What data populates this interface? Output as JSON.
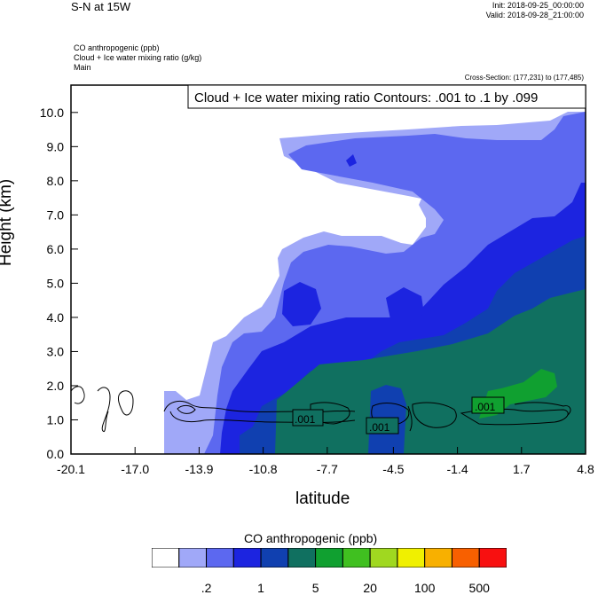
{
  "header": {
    "title": "S-N at 15W",
    "init": "Init: 2018-09-25_00:00:00",
    "valid": "Valid: 2018-09-28_21:00:00",
    "field1": "CO anthropogenic   (ppb)",
    "field2": "Cloud + Ice water mixing ratio   (g/kg)",
    "field3": "Main",
    "cross_section": "Cross-Section: (177,231) to (177,485)"
  },
  "chart_data": {
    "type": "contour",
    "title": "S-N at 15W",
    "contour_caption": "Cloud + Ice water mixing ratio Contours: .001 to .1 by .099",
    "xlabel": "latitude",
    "ylabel": "Height (km)",
    "xlim": [
      -20.1,
      4.8
    ],
    "ylim": [
      0.0,
      10.8
    ],
    "x_ticks": [
      "-20.1",
      "-17.0",
      "-13.9",
      "-10.8",
      "-7.7",
      "-4.5",
      "-1.4",
      "1.7",
      "4.8"
    ],
    "y_ticks": [
      "0.0",
      "1.0",
      "2.0",
      "3.0",
      "4.0",
      "5.0",
      "6.0",
      "7.0",
      "8.0",
      "9.0",
      "10.0"
    ],
    "contour_labels": [
      ".001",
      ".001",
      ".001"
    ],
    "colorbar": {
      "title": "CO anthropogenic  (ppb)",
      "colors": [
        "#ffffff",
        "#a0a8f8",
        "#5c68f0",
        "#1c24e0",
        "#1040b0",
        "#107060",
        "#10a030",
        "#40c020",
        "#a0d820",
        "#f0f000",
        "#f8b000",
        "#f86000",
        "#f81010"
      ],
      "labels": [
        ".2",
        "1",
        "5",
        "20",
        "100",
        "500"
      ]
    }
  }
}
